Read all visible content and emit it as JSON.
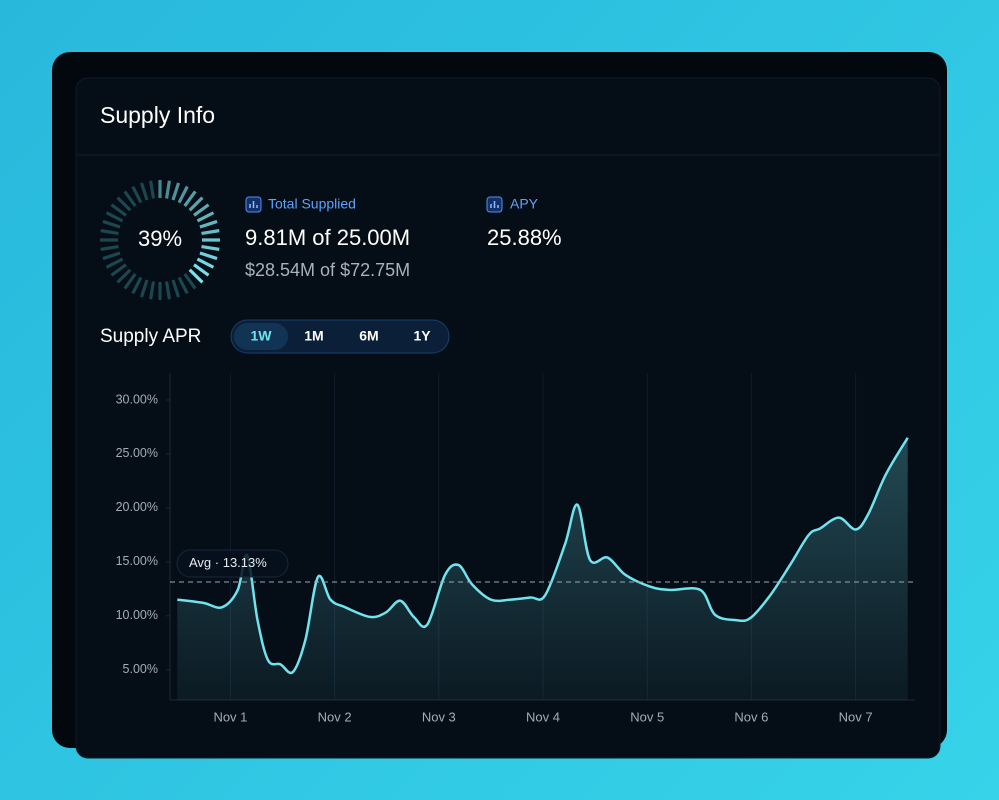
{
  "header": {
    "title": "Supply Info"
  },
  "utilization": {
    "value": 39,
    "label": "39%"
  },
  "stats": [
    {
      "label": "Total Supplied",
      "value": "9.81M of 25.00M",
      "subvalue": "$28.54M of $72.75M"
    },
    {
      "label": "APY",
      "value": "25.88%"
    }
  ],
  "chart_data": {
    "type": "line",
    "title": "Supply APR",
    "periods": [
      "1W",
      "1M",
      "6M",
      "1Y"
    ],
    "active_period": "1W",
    "x": [
      0.49,
      0.74,
      0.92,
      1.07,
      1.16,
      1.26,
      1.36,
      1.48,
      1.6,
      1.72,
      1.84,
      1.96,
      2.1,
      2.34,
      2.49,
      2.63,
      2.76,
      2.89,
      3.06,
      3.19,
      3.32,
      3.5,
      3.69,
      3.88,
      4.02,
      4.21,
      4.33,
      4.45,
      4.62,
      4.79,
      5.03,
      5.22,
      5.51,
      5.65,
      5.85,
      5.99,
      6.18,
      6.37,
      6.55,
      6.66,
      6.84,
      7.0,
      7.12,
      7.29,
      7.5
    ],
    "values": [
      11.5,
      11.2,
      10.8,
      12.4,
      15.6,
      9.6,
      5.9,
      5.5,
      4.8,
      7.8,
      13.6,
      11.5,
      10.8,
      9.9,
      10.3,
      11.4,
      9.9,
      9.2,
      13.8,
      14.7,
      12.9,
      11.5,
      11.5,
      11.7,
      11.9,
      16.6,
      20.3,
      15.2,
      15.4,
      13.8,
      12.7,
      12.4,
      12.4,
      10.1,
      9.6,
      9.8,
      11.9,
      14.7,
      17.5,
      18.1,
      19.1,
      18.0,
      19.4,
      23.1,
      26.5
    ],
    "color": "#6fe3ee",
    "xlim": [
      0.42,
      7.57
    ],
    "xticks": [
      {
        "value": 1,
        "label": "Nov 1"
      },
      {
        "value": 2,
        "label": "Nov 2"
      },
      {
        "value": 3,
        "label": "Nov 3"
      },
      {
        "value": 4,
        "label": "Nov 4"
      },
      {
        "value": 5,
        "label": "Nov 5"
      },
      {
        "value": 6,
        "label": "Nov 6"
      },
      {
        "value": 7,
        "label": "Nov 7"
      }
    ],
    "ylim": [
      2.2,
      32.5
    ],
    "yticks": [
      {
        "value": 5,
        "label": "5.00%"
      },
      {
        "value": 10,
        "label": "10.00%"
      },
      {
        "value": 15,
        "label": "15.00%"
      },
      {
        "value": 20,
        "label": "20.00%"
      },
      {
        "value": 25,
        "label": "25.00%"
      },
      {
        "value": 30,
        "label": "30.00%"
      }
    ],
    "average": {
      "value": 13.13,
      "label": "Avg · 13.13%"
    },
    "grid": true
  }
}
